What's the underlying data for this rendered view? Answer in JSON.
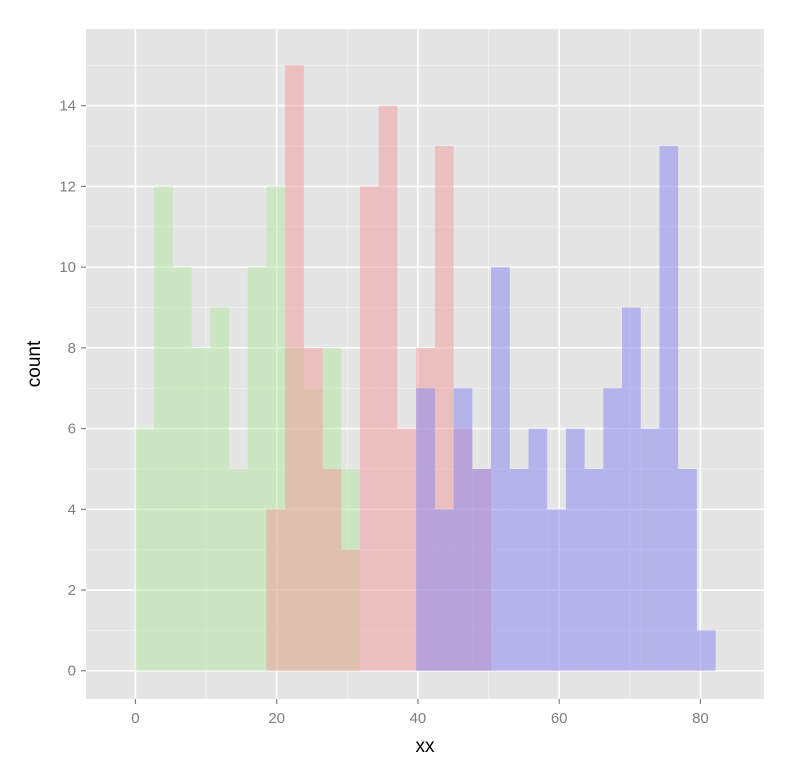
{
  "chart_data": {
    "type": "histogram",
    "title": "",
    "xlabel": "xx",
    "ylabel": "count",
    "xlim": [
      -7,
      89
    ],
    "ylim": [
      -0.7,
      15.9
    ],
    "x_ticks": [
      0,
      20,
      40,
      60,
      80
    ],
    "y_ticks": [
      0,
      2,
      4,
      6,
      8,
      10,
      12,
      14
    ],
    "grid": true,
    "bin_width": 2.65,
    "series": [
      {
        "color": "#b3e6a0",
        "opacity": 0.5,
        "bins": [
          {
            "x0": 0.0,
            "count": 6
          },
          {
            "x0": 2.65,
            "count": 12
          },
          {
            "x0": 5.3,
            "count": 10
          },
          {
            "x0": 7.95,
            "count": 8
          },
          {
            "x0": 10.6,
            "count": 9
          },
          {
            "x0": 13.25,
            "count": 5
          },
          {
            "x0": 15.9,
            "count": 10
          },
          {
            "x0": 18.55,
            "count": 12
          },
          {
            "x0": 21.2,
            "count": 8
          },
          {
            "x0": 23.85,
            "count": 7
          },
          {
            "x0": 26.5,
            "count": 8
          },
          {
            "x0": 29.15,
            "count": 5
          }
        ]
      },
      {
        "color": "#f19a9a",
        "opacity": 0.5,
        "bins": [
          {
            "x0": 18.55,
            "count": 4
          },
          {
            "x0": 21.2,
            "count": 15
          },
          {
            "x0": 23.85,
            "count": 8
          },
          {
            "x0": 26.5,
            "count": 5
          },
          {
            "x0": 29.15,
            "count": 3
          },
          {
            "x0": 31.8,
            "count": 12
          },
          {
            "x0": 34.45,
            "count": 14
          },
          {
            "x0": 37.1,
            "count": 6
          },
          {
            "x0": 39.75,
            "count": 8
          },
          {
            "x0": 42.4,
            "count": 13
          },
          {
            "x0": 45.05,
            "count": 6
          },
          {
            "x0": 47.7,
            "count": 5
          }
        ]
      },
      {
        "color": "#8c8cf0",
        "opacity": 0.55,
        "bins": [
          {
            "x0": 39.75,
            "count": 7
          },
          {
            "x0": 42.4,
            "count": 4
          },
          {
            "x0": 45.05,
            "count": 7
          },
          {
            "x0": 47.7,
            "count": 5
          },
          {
            "x0": 50.35,
            "count": 10
          },
          {
            "x0": 53.0,
            "count": 5
          },
          {
            "x0": 55.65,
            "count": 6
          },
          {
            "x0": 58.3,
            "count": 4
          },
          {
            "x0": 60.95,
            "count": 6
          },
          {
            "x0": 63.6,
            "count": 5
          },
          {
            "x0": 66.25,
            "count": 7
          },
          {
            "x0": 68.9,
            "count": 9
          },
          {
            "x0": 71.55,
            "count": 6
          },
          {
            "x0": 74.2,
            "count": 13
          },
          {
            "x0": 76.85,
            "count": 5
          },
          {
            "x0": 79.5,
            "count": 1
          }
        ]
      }
    ]
  }
}
